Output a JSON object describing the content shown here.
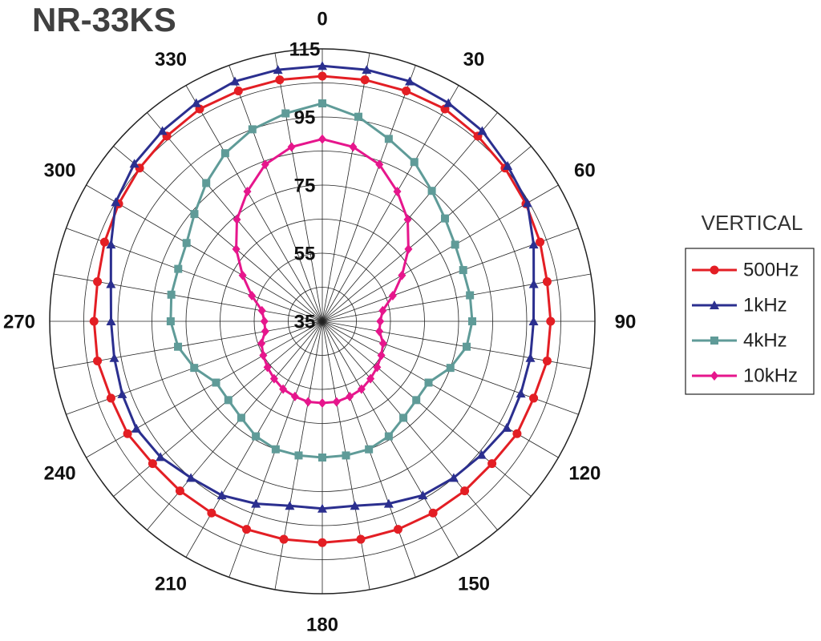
{
  "chart_data": {
    "type": "polar",
    "title": "NR-33KS",
    "legend_title": "VERTICAL",
    "legend": "right",
    "theta": [
      0,
      10,
      20,
      30,
      40,
      50,
      60,
      70,
      80,
      90,
      100,
      110,
      120,
      130,
      140,
      150,
      160,
      170,
      180,
      190,
      200,
      210,
      220,
      230,
      240,
      250,
      260,
      270,
      280,
      290,
      300,
      310,
      320,
      330,
      340,
      350
    ],
    "thetaticks": [
      0,
      30,
      60,
      90,
      120,
      150,
      180,
      210,
      240,
      270,
      300,
      330
    ],
    "ylim": [
      35,
      115
    ],
    "yticks": [
      35,
      55,
      75,
      95,
      115
    ],
    "minor_yticks": [
      45,
      65,
      85,
      105
    ],
    "grid": true,
    "series": [
      {
        "name": "500Hz",
        "color": "#e31e24",
        "marker": "circle",
        "values": [
          107,
          107,
          107,
          107,
          106,
          105,
          104,
          103,
          102,
          102,
          102,
          101,
          101,
          100,
          100,
          100,
          100,
          100,
          100,
          100,
          100,
          100,
          100,
          100,
          101,
          101,
          102,
          102,
          102,
          103,
          104,
          105,
          106,
          107,
          107,
          107
        ]
      },
      {
        "name": "1kHz",
        "color": "#2b2f8f",
        "marker": "triangle",
        "values": [
          110,
          110,
          110,
          109,
          108,
          106,
          104.5,
          101,
          98,
          97,
          97,
          97,
          97.5,
          96,
          95,
          94,
          92,
          90,
          90,
          90,
          92,
          94,
          95,
          97,
          98,
          97.5,
          97,
          97,
          98,
          101,
          105,
          107,
          108,
          109,
          110,
          110
        ]
      },
      {
        "name": "4kHz",
        "color": "#5f9b98",
        "marker": "square",
        "values": [
          99,
          96,
          92,
          89,
          85,
          82,
          80,
          79,
          79,
          79,
          78,
          75,
          71,
          71,
          72,
          74,
          75,
          75,
          75,
          75,
          75,
          74,
          72,
          71,
          71,
          75,
          78,
          79.5,
          80,
          80,
          81,
          84,
          88,
          92,
          95,
          97
        ]
      },
      {
        "name": "10kHz",
        "color": "#e6168c",
        "marker": "diamond",
        "values": [
          88.5,
          87,
          84,
          79,
          74,
          68,
          62,
          57,
          53,
          52,
          52,
          54,
          55,
          56,
          57,
          58,
          58.5,
          59,
          59,
          59,
          58.5,
          58,
          57,
          56,
          55,
          54,
          52,
          52,
          53,
          57,
          62,
          68,
          74,
          79,
          84,
          87
        ]
      }
    ]
  }
}
